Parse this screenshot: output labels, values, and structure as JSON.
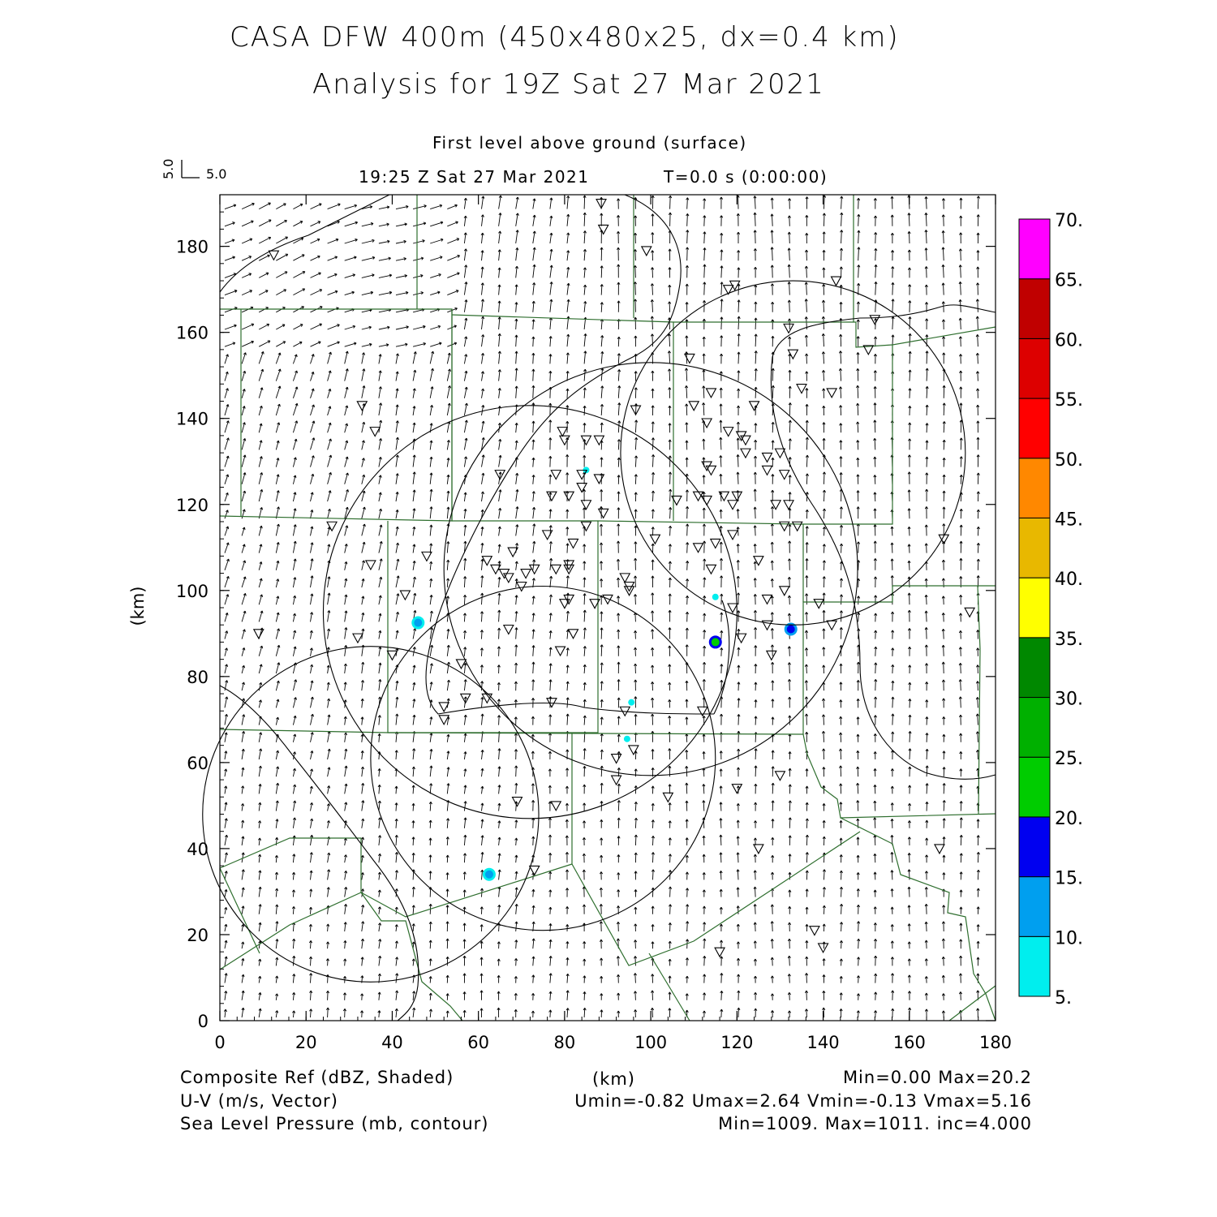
{
  "title_line1": "CASA DFW 400m (450x480x25, dx=0.4 km)",
  "title_line2": "Analysis for 19Z Sat 27 Mar 2021",
  "level_label": "First level above ground (surface)",
  "time_label": "19:25 Z Sat 27 Mar 2021",
  "elapsed_label": "T=0.0 s (0:00:00)",
  "vector_key": {
    "u_label": "5.0",
    "v_label": "5.0"
  },
  "axes": {
    "xlabel": "(km)",
    "ylabel": "(km)",
    "xlim": [
      0,
      180
    ],
    "ylim": [
      0,
      192
    ],
    "xticks": [
      "0",
      "20",
      "40",
      "60",
      "80",
      "100",
      "120",
      "140",
      "160",
      "180"
    ],
    "yticks": [
      "0",
      "20",
      "40",
      "60",
      "80",
      "100",
      "120",
      "140",
      "160",
      "180"
    ]
  },
  "colorbar": {
    "labels": [
      "5.",
      "10.",
      "15.",
      "20.",
      "25.",
      "30.",
      "35.",
      "40.",
      "45.",
      "50.",
      "55.",
      "60.",
      "65.",
      "70."
    ],
    "colors": [
      "#00eeee",
      "#009fef",
      "#0000f0",
      "#00cc00",
      "#00b000",
      "#008800",
      "#ffff00",
      "#e8b800",
      "#ff8800",
      "#ff0000",
      "#dd0000",
      "#c00000",
      "#ff00ff"
    ]
  },
  "legend": {
    "line1_left": "Composite Ref (dBZ, Shaded)",
    "line1_mid": "(km)",
    "line1_right": "Min=0.00 Max=20.2",
    "line2_left": "U-V (m/s, Vector)",
    "line2_right": "Umin=-0.82 Umax=2.64 Vmin=-0.13 Vmax=5.16",
    "line3_left": "Sea Level Pressure (mb, contour)",
    "line3_right": "Min=1009. Max=1011. inc=4.000"
  },
  "radar_rings_km": [
    {
      "cx": 35,
      "cy": 48,
      "r": 39
    },
    {
      "cx": 75,
      "cy": 61,
      "r": 40
    },
    {
      "cx": 72,
      "cy": 95,
      "r": 48
    },
    {
      "cx": 100,
      "cy": 105,
      "r": 48
    },
    {
      "cx": 133,
      "cy": 132,
      "r": 40
    }
  ],
  "echoes_km": [
    {
      "x": 46,
      "y": 92.5,
      "dbz": 14
    },
    {
      "x": 115,
      "y": 88,
      "dbz": 20
    },
    {
      "x": 132.5,
      "y": 91,
      "dbz": 16
    },
    {
      "x": 62.5,
      "y": 34,
      "dbz": 13
    },
    {
      "x": 95.5,
      "y": 74,
      "dbz": 6
    },
    {
      "x": 94.5,
      "y": 65.5,
      "dbz": 6
    },
    {
      "x": 115,
      "y": 98.5,
      "dbz": 6
    },
    {
      "x": 85,
      "y": 128,
      "dbz": 6
    }
  ],
  "stations_km": [
    [
      88.5,
      190
    ],
    [
      89,
      184
    ],
    [
      99,
      179
    ],
    [
      12.5,
      178
    ],
    [
      118,
      170
    ],
    [
      119.5,
      171
    ],
    [
      143,
      172
    ],
    [
      152,
      163
    ],
    [
      132,
      161
    ],
    [
      150.5,
      156
    ],
    [
      133,
      155
    ],
    [
      109,
      154
    ],
    [
      33,
      143
    ],
    [
      36,
      137
    ],
    [
      96.5,
      142
    ],
    [
      110,
      143
    ],
    [
      114,
      146
    ],
    [
      124,
      143
    ],
    [
      135,
      147
    ],
    [
      142,
      146
    ],
    [
      79.5,
      137
    ],
    [
      80,
      135
    ],
    [
      85,
      135
    ],
    [
      88,
      135
    ],
    [
      113,
      139
    ],
    [
      118,
      137
    ],
    [
      121,
      136
    ],
    [
      122,
      135
    ],
    [
      122,
      132
    ],
    [
      127,
      131
    ],
    [
      130,
      132
    ],
    [
      65,
      127
    ],
    [
      78,
      127
    ],
    [
      84,
      127
    ],
    [
      88,
      126
    ],
    [
      113,
      129
    ],
    [
      114,
      128
    ],
    [
      127,
      128
    ],
    [
      131,
      127
    ],
    [
      77,
      122
    ],
    [
      81,
      122
    ],
    [
      84,
      124
    ],
    [
      85,
      120
    ],
    [
      89,
      118
    ],
    [
      106,
      121
    ],
    [
      111,
      122
    ],
    [
      113,
      121
    ],
    [
      117,
      122
    ],
    [
      120,
      122
    ],
    [
      119,
      120
    ],
    [
      129,
      120
    ],
    [
      132,
      120
    ],
    [
      26,
      115
    ],
    [
      131,
      115
    ],
    [
      134,
      115
    ],
    [
      76,
      113
    ],
    [
      82,
      111
    ],
    [
      85,
      115
    ],
    [
      101,
      112
    ],
    [
      111,
      110
    ],
    [
      115,
      111
    ],
    [
      119,
      113
    ],
    [
      35,
      106
    ],
    [
      48,
      108
    ],
    [
      62,
      107
    ],
    [
      64,
      105
    ],
    [
      66,
      104
    ],
    [
      67,
      103
    ],
    [
      68,
      109
    ],
    [
      70,
      101
    ],
    [
      71,
      104
    ],
    [
      73,
      105
    ],
    [
      78,
      105
    ],
    [
      81,
      106
    ],
    [
      81,
      105
    ],
    [
      94,
      103
    ],
    [
      95,
      101
    ],
    [
      95,
      100
    ],
    [
      114,
      105
    ],
    [
      125,
      107
    ],
    [
      168,
      112
    ],
    [
      43,
      99
    ],
    [
      80,
      97
    ],
    [
      81,
      98
    ],
    [
      87,
      97
    ],
    [
      90,
      98
    ],
    [
      119,
      96
    ],
    [
      127,
      98
    ],
    [
      131,
      100
    ],
    [
      139,
      97
    ],
    [
      142,
      92
    ],
    [
      174,
      95
    ],
    [
      9,
      90
    ],
    [
      32,
      89
    ],
    [
      40,
      85
    ],
    [
      67,
      91
    ],
    [
      82,
      90
    ],
    [
      79,
      86
    ],
    [
      121,
      89
    ],
    [
      127,
      92
    ],
    [
      128,
      85
    ],
    [
      56,
      83
    ],
    [
      52,
      73
    ],
    [
      57,
      75
    ],
    [
      62,
      75
    ],
    [
      77,
      74
    ],
    [
      94,
      72
    ],
    [
      112,
      72
    ],
    [
      52,
      70
    ],
    [
      92,
      61
    ],
    [
      96,
      63
    ],
    [
      130,
      57
    ],
    [
      92,
      56
    ],
    [
      120,
      54
    ],
    [
      104,
      52
    ],
    [
      69,
      51
    ],
    [
      78,
      50
    ],
    [
      125,
      40
    ],
    [
      167,
      40
    ],
    [
      73,
      35
    ],
    [
      138,
      21
    ],
    [
      140,
      17
    ],
    [
      116,
      16
    ]
  ]
}
